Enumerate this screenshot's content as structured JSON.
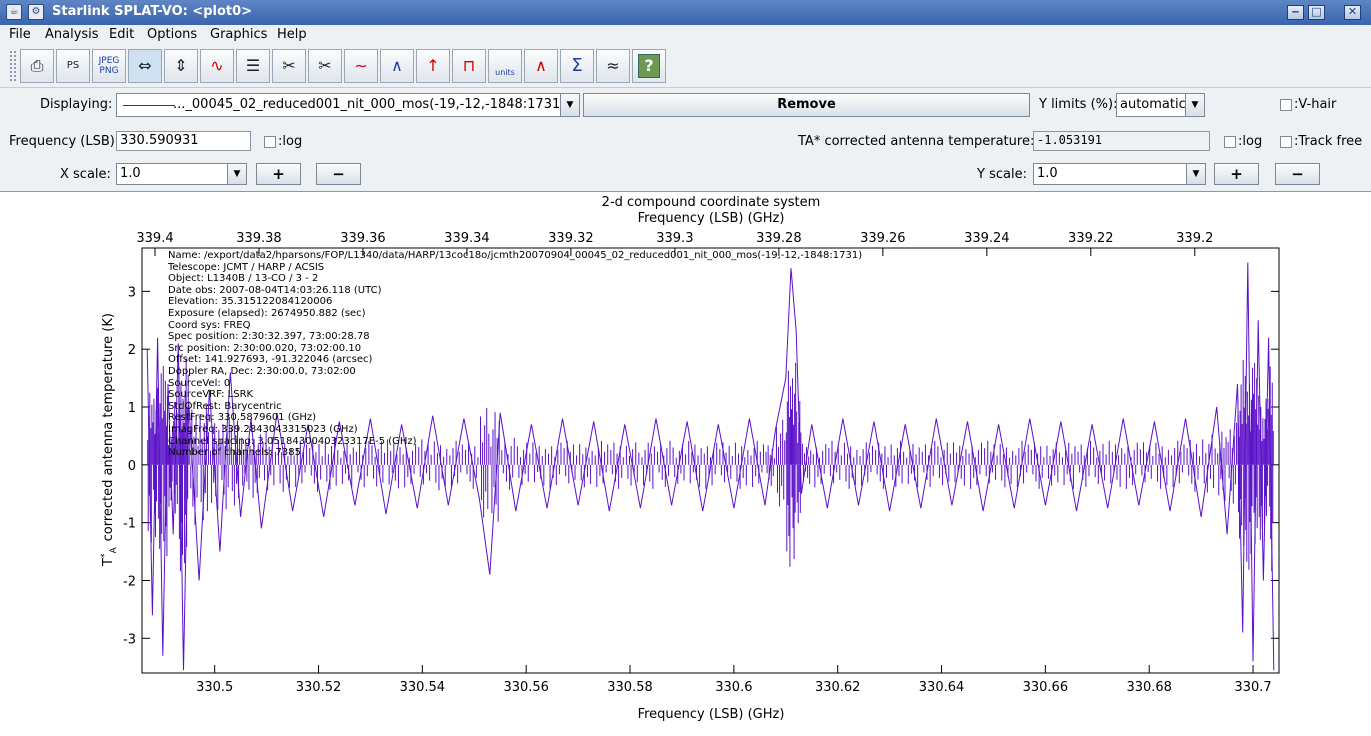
{
  "window": {
    "title": "Starlink SPLAT-VO: <plot0>",
    "min": "‒",
    "max": "□",
    "close": "✕"
  },
  "menu": [
    "File",
    "Analysis",
    "Edit",
    "Options",
    "Graphics",
    "Help"
  ],
  "toolbar": {
    "buttons": [
      {
        "name": "print-icon",
        "glyph": "🖨"
      },
      {
        "name": "print-postscript-icon",
        "glyph": "PS"
      },
      {
        "name": "jpeg-png-icon",
        "glyph": "JPEG PNG"
      },
      {
        "name": "fit-width-icon",
        "glyph": "⇔"
      },
      {
        "name": "fit-height-icon",
        "glyph": "⇕"
      },
      {
        "name": "view-spectrum-icon",
        "glyph": "∿"
      },
      {
        "name": "spectrum-list-icon",
        "glyph": "☰"
      },
      {
        "name": "cut-icon",
        "glyph": "✂"
      },
      {
        "name": "cut-regions-icon",
        "glyph": "✂"
      },
      {
        "name": "baseline-icon",
        "glyph": "∼"
      },
      {
        "name": "interpolate-icon",
        "glyph": "∧"
      },
      {
        "name": "line-fit-icon",
        "glyph": "↑"
      },
      {
        "name": "filter-icon",
        "glyph": "⊓"
      },
      {
        "name": "units-icon",
        "glyph": "units"
      },
      {
        "name": "stack-icon",
        "glyph": "∧"
      },
      {
        "name": "sum-icon",
        "glyph": "Σ"
      },
      {
        "name": "layers-icon",
        "glyph": "≈"
      },
      {
        "name": "help-icon",
        "glyph": "?"
      }
    ]
  },
  "controls": {
    "displaying_label": "Displaying:",
    "displaying_value": "..._00045_02_reduced001_nit_000_mos(-19,-12,-1848:1731)",
    "remove_label": "Remove",
    "ylimits_label": "Y limits (%):",
    "ylimits_value": "automatic",
    "vhair_label": ":V-hair",
    "freq_label": "Frequency (LSB):",
    "freq_value": "330.590931",
    "log1_label": ":log",
    "ta_label": "TA*   corrected antenna temperature:",
    "ta_value": "-1.053191",
    "log2_label": ":log",
    "track_label": ":Track free",
    "xscale_label": "X scale:",
    "xscale_value": "1.0",
    "yscale_label": "Y scale:",
    "yscale_value": "1.0",
    "plus": "+",
    "minus": "−"
  },
  "colors": {
    "series": "#5a10c8",
    "titlebar": "#3a64ad"
  },
  "chart_data": {
    "type": "line",
    "title": "2-d compound coordinate system",
    "top_axis_label": "Frequency (LSB) (GHz)",
    "xlabel": "Frequency (LSB) (GHz)",
    "ylabel": "corrected antenna temperature (K)",
    "ylabel_symbol": "T",
    "ylabel_sup": "*",
    "ylabel_sub": "A",
    "xlim": [
      330.486,
      330.705
    ],
    "ylim": [
      -3.6,
      3.75
    ],
    "xticks": [
      "330.5",
      "330.52",
      "330.54",
      "330.56",
      "330.58",
      "330.6",
      "330.62",
      "330.64",
      "330.66",
      "330.68",
      "330.7"
    ],
    "xtick_values": [
      330.5,
      330.52,
      330.54,
      330.56,
      330.58,
      330.6,
      330.62,
      330.64,
      330.66,
      330.68,
      330.7
    ],
    "yticks": [
      "-3",
      "-2",
      "-1",
      "0",
      "1",
      "2",
      "3"
    ],
    "ytick_values": [
      -3,
      -2,
      -1,
      0,
      1,
      2,
      3
    ],
    "top_ticks": [
      "339.4",
      "339.38",
      "339.36",
      "339.34",
      "339.32",
      "339.3",
      "339.28",
      "339.26",
      "339.24",
      "339.22",
      "339.2"
    ],
    "top_tick_values": [
      339.4,
      339.38,
      339.36,
      339.34,
      339.32,
      339.3,
      339.28,
      339.26,
      339.24,
      339.22,
      339.2
    ],
    "top_lim": [
      339.4025,
      339.1838
    ],
    "series": [
      {
        "points": [
          [
            330.487,
            2.0
          ],
          [
            330.488,
            -2.6
          ],
          [
            330.489,
            2.2
          ],
          [
            330.49,
            -3.3
          ],
          [
            330.491,
            1.4
          ],
          [
            330.492,
            -1.2
          ],
          [
            330.493,
            2.1
          ],
          [
            330.494,
            -3.55
          ],
          [
            330.495,
            1.1
          ],
          [
            330.497,
            -2.0
          ],
          [
            330.499,
            1.3
          ],
          [
            330.501,
            -1.5
          ],
          [
            330.503,
            1.6
          ],
          [
            330.505,
            -0.9
          ],
          [
            330.507,
            0.8
          ],
          [
            330.509,
            -1.1
          ],
          [
            330.512,
            0.9
          ],
          [
            330.515,
            -0.8
          ],
          [
            330.518,
            0.7
          ],
          [
            330.521,
            -0.9
          ],
          [
            330.524,
            0.75
          ],
          [
            330.527,
            -0.7
          ],
          [
            330.53,
            0.8
          ],
          [
            330.533,
            -0.85
          ],
          [
            330.536,
            0.7
          ],
          [
            330.539,
            -0.75
          ],
          [
            330.542,
            0.85
          ],
          [
            330.545,
            -0.7
          ],
          [
            330.548,
            0.8
          ],
          [
            330.551,
            -0.6
          ],
          [
            330.553,
            -1.9
          ],
          [
            330.555,
            0.9
          ],
          [
            330.558,
            -0.8
          ],
          [
            330.561,
            0.7
          ],
          [
            330.564,
            -0.75
          ],
          [
            330.567,
            0.8
          ],
          [
            330.57,
            -0.7
          ],
          [
            330.573,
            0.75
          ],
          [
            330.576,
            -0.8
          ],
          [
            330.579,
            0.7
          ],
          [
            330.582,
            -0.75
          ],
          [
            330.585,
            0.8
          ],
          [
            330.588,
            -0.7
          ],
          [
            330.591,
            0.75
          ],
          [
            330.594,
            -0.8
          ],
          [
            330.597,
            0.7
          ],
          [
            330.6,
            -0.75
          ],
          [
            330.603,
            0.8
          ],
          [
            330.606,
            -0.7
          ],
          [
            330.608,
            0.6
          ],
          [
            330.61,
            1.5
          ],
          [
            330.611,
            3.4
          ],
          [
            330.612,
            2.3
          ],
          [
            330.613,
            -0.5
          ],
          [
            330.615,
            0.7
          ],
          [
            330.618,
            -0.75
          ],
          [
            330.621,
            0.8
          ],
          [
            330.624,
            -0.7
          ],
          [
            330.627,
            0.75
          ],
          [
            330.63,
            -0.8
          ],
          [
            330.633,
            0.7
          ],
          [
            330.636,
            -0.75
          ],
          [
            330.639,
            0.8
          ],
          [
            330.642,
            -0.7
          ],
          [
            330.645,
            0.75
          ],
          [
            330.648,
            -0.8
          ],
          [
            330.651,
            0.7
          ],
          [
            330.654,
            -0.75
          ],
          [
            330.657,
            0.8
          ],
          [
            330.66,
            -0.7
          ],
          [
            330.663,
            0.75
          ],
          [
            330.666,
            -0.8
          ],
          [
            330.669,
            0.7
          ],
          [
            330.672,
            -0.75
          ],
          [
            330.675,
            0.8
          ],
          [
            330.678,
            -0.7
          ],
          [
            330.681,
            0.75
          ],
          [
            330.684,
            -0.8
          ],
          [
            330.687,
            0.8
          ],
          [
            330.69,
            -0.9
          ],
          [
            330.693,
            1.0
          ],
          [
            330.695,
            -1.2
          ],
          [
            330.697,
            1.4
          ],
          [
            330.698,
            -2.9
          ],
          [
            330.699,
            3.5
          ],
          [
            330.7,
            -3.4
          ],
          [
            330.701,
            2.5
          ],
          [
            330.702,
            -2.0
          ],
          [
            330.703,
            2.2
          ],
          [
            330.704,
            -3.55
          ]
        ]
      }
    ]
  },
  "metadata_lines": [
    "Name: /export/data2/hparsons/FOP/L1340/data/HARP/13coc18o/jcmth20070904_00045_02_reduced001_nit_000_mos(-19,-12,-1848:1731)",
    "Telescope: JCMT / HARP / ACSIS",
    "Object: L1340B / 13-CO / 3 - 2",
    "Date obs: 2007-08-04T14:03:26.118 (UTC)",
    "Elevation: 35.315122084120006",
    "Exposure (elapsed): 2674950.882 (sec)",
    "Coord sys: FREQ",
    "Spec position: 2:30:32.397, 73:00:28.78",
    "Src position: 2:30:00.020, 73:02:00.10",
    "Offset: 141.927693, -91.322046 (arcsec)",
    "Doppler RA, Dec: 2:30:00.0, 73:02:00",
    "SourceVel: 0",
    "SourceVRF: LSRK",
    "StdOfRest: Barycentric",
    "RestFreq: 330.5879601 (GHz)",
    "ImagFreq: 339.2843043315023 (GHz)",
    "Channel spacing: 3.0518430040323317E-5 (GHz)",
    "Number of channels: 7385"
  ]
}
